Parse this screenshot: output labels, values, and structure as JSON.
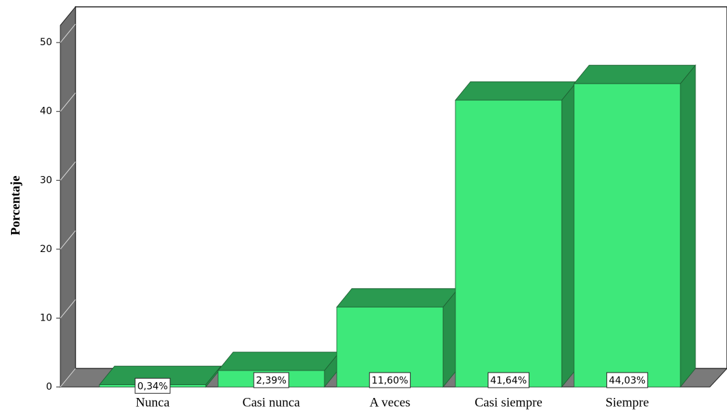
{
  "chart_data": {
    "type": "bar3d",
    "y_axis_label": "Porcentaje",
    "categories": [
      "Nunca",
      "Casi nunca",
      "A veces",
      "Casi siempre",
      "Siempre"
    ],
    "values": [
      0.34,
      2.39,
      11.6,
      41.64,
      44.03
    ],
    "value_labels": [
      "0,34%",
      "2,39%",
      "11,60%",
      "41,64%",
      "44,03%"
    ],
    "color": "#3ee87a",
    "ylim": [
      0,
      52.5
    ],
    "yticks": [
      0,
      10,
      20,
      30,
      40,
      50
    ]
  }
}
